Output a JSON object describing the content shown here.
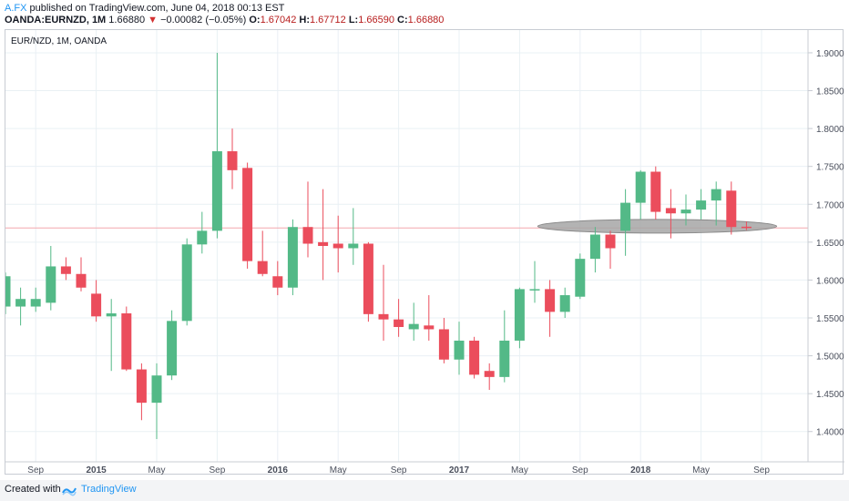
{
  "header": {
    "author": "A.FX",
    "published_text": "published on TradingView.com, June 04, 2018 00:13 EST",
    "symbol_line": "OANDA:EURNZD, 1M",
    "last": "1.66880",
    "change_arrow": "▼",
    "change": "−0.00082 (−0.05%)",
    "o_label": "O:",
    "o_value": "1.67042",
    "h_label": "H:",
    "h_value": "1.67712",
    "l_label": "L:",
    "l_value": "1.66590",
    "c_label": "C:",
    "c_value": "1.66880"
  },
  "footer": {
    "created_with": "Created with",
    "brand": "TradingView"
  },
  "colors": {
    "up": "#53b987",
    "down": "#eb4d5c",
    "grid": "#e9f0f4",
    "price_line": "#f3a7ae",
    "highlight": "#a6a6a6",
    "axis_text": "#4a4f5c"
  },
  "chart_data": {
    "type": "candlestick",
    "title": "EUR/NZD, 1M, OANDA",
    "ylim": [
      1.36,
      1.93
    ],
    "y_ticks": [
      "1.40000",
      "1.45000",
      "1.50000",
      "1.55000",
      "1.60000",
      "1.65000",
      "1.70000",
      "1.75000",
      "1.80000",
      "1.85000",
      "1.90000"
    ],
    "x_ticks": [
      {
        "label": "Sep",
        "bold": false,
        "i": 2
      },
      {
        "label": "2015",
        "bold": true,
        "i": 6
      },
      {
        "label": "May",
        "bold": false,
        "i": 10
      },
      {
        "label": "Sep",
        "bold": false,
        "i": 14
      },
      {
        "label": "2016",
        "bold": true,
        "i": 18
      },
      {
        "label": "May",
        "bold": false,
        "i": 22
      },
      {
        "label": "Sep",
        "bold": false,
        "i": 26
      },
      {
        "label": "2017",
        "bold": true,
        "i": 30
      },
      {
        "label": "May",
        "bold": false,
        "i": 34
      },
      {
        "label": "Sep",
        "bold": false,
        "i": 38
      },
      {
        "label": "2018",
        "bold": true,
        "i": 42
      },
      {
        "label": "May",
        "bold": false,
        "i": 46
      },
      {
        "label": "Sep",
        "bold": false,
        "i": 50
      }
    ],
    "current_price": 1.6688,
    "highlight_zone": {
      "from_index": 35.2,
      "to_index": 51.0,
      "center": 1.671,
      "half_height": 0.009
    },
    "candles": [
      {
        "month": "2014-06",
        "o": 1.565,
        "h": 1.61,
        "l": 1.555,
        "c": 1.605
      },
      {
        "month": "2014-07",
        "o": 1.565,
        "h": 1.59,
        "l": 1.54,
        "c": 1.575
      },
      {
        "month": "2014-08",
        "o": 1.565,
        "h": 1.59,
        "l": 1.558,
        "c": 1.575
      },
      {
        "month": "2014-09",
        "o": 1.57,
        "h": 1.645,
        "l": 1.56,
        "c": 1.618
      },
      {
        "month": "2014-10",
        "o": 1.618,
        "h": 1.63,
        "l": 1.6,
        "c": 1.608
      },
      {
        "month": "2014-11",
        "o": 1.608,
        "h": 1.63,
        "l": 1.585,
        "c": 1.59
      },
      {
        "month": "2014-12",
        "o": 1.582,
        "h": 1.6,
        "l": 1.545,
        "c": 1.552
      },
      {
        "month": "2015-01",
        "o": 1.552,
        "h": 1.575,
        "l": 1.48,
        "c": 1.556
      },
      {
        "month": "2015-02",
        "o": 1.556,
        "h": 1.565,
        "l": 1.48,
        "c": 1.482
      },
      {
        "month": "2015-03",
        "o": 1.482,
        "h": 1.49,
        "l": 1.415,
        "c": 1.438
      },
      {
        "month": "2015-04",
        "o": 1.438,
        "h": 1.49,
        "l": 1.39,
        "c": 1.474
      },
      {
        "month": "2015-05",
        "o": 1.474,
        "h": 1.56,
        "l": 1.468,
        "c": 1.546
      },
      {
        "month": "2015-06",
        "o": 1.546,
        "h": 1.655,
        "l": 1.54,
        "c": 1.647
      },
      {
        "month": "2015-07",
        "o": 1.647,
        "h": 1.69,
        "l": 1.635,
        "c": 1.665
      },
      {
        "month": "2015-08",
        "o": 1.665,
        "h": 1.9,
        "l": 1.655,
        "c": 1.77
      },
      {
        "month": "2015-09",
        "o": 1.77,
        "h": 1.8,
        "l": 1.72,
        "c": 1.745
      },
      {
        "month": "2015-10",
        "o": 1.748,
        "h": 1.755,
        "l": 1.615,
        "c": 1.625
      },
      {
        "month": "2015-11",
        "o": 1.625,
        "h": 1.665,
        "l": 1.605,
        "c": 1.608
      },
      {
        "month": "2015-12",
        "o": 1.605,
        "h": 1.625,
        "l": 1.58,
        "c": 1.59
      },
      {
        "month": "2016-01",
        "o": 1.59,
        "h": 1.68,
        "l": 1.58,
        "c": 1.67
      },
      {
        "month": "2016-02",
        "o": 1.67,
        "h": 1.73,
        "l": 1.63,
        "c": 1.648
      },
      {
        "month": "2016-03",
        "o": 1.65,
        "h": 1.72,
        "l": 1.6,
        "c": 1.645
      },
      {
        "month": "2016-04",
        "o": 1.648,
        "h": 1.685,
        "l": 1.61,
        "c": 1.642
      },
      {
        "month": "2016-05",
        "o": 1.642,
        "h": 1.695,
        "l": 1.62,
        "c": 1.648
      },
      {
        "month": "2016-06",
        "o": 1.648,
        "h": 1.65,
        "l": 1.545,
        "c": 1.555
      },
      {
        "month": "2016-07",
        "o": 1.555,
        "h": 1.62,
        "l": 1.52,
        "c": 1.548
      },
      {
        "month": "2016-08",
        "o": 1.548,
        "h": 1.575,
        "l": 1.525,
        "c": 1.538
      },
      {
        "month": "2016-09",
        "o": 1.535,
        "h": 1.57,
        "l": 1.52,
        "c": 1.542
      },
      {
        "month": "2016-10",
        "o": 1.54,
        "h": 1.58,
        "l": 1.52,
        "c": 1.535
      },
      {
        "month": "2016-11",
        "o": 1.535,
        "h": 1.55,
        "l": 1.49,
        "c": 1.495
      },
      {
        "month": "2016-12",
        "o": 1.495,
        "h": 1.545,
        "l": 1.475,
        "c": 1.52
      },
      {
        "month": "2017-01",
        "o": 1.52,
        "h": 1.525,
        "l": 1.47,
        "c": 1.475
      },
      {
        "month": "2017-02",
        "o": 1.48,
        "h": 1.49,
        "l": 1.455,
        "c": 1.472
      },
      {
        "month": "2017-03",
        "o": 1.472,
        "h": 1.56,
        "l": 1.465,
        "c": 1.52
      },
      {
        "month": "2017-04",
        "o": 1.52,
        "h": 1.59,
        "l": 1.51,
        "c": 1.588
      },
      {
        "month": "2017-05",
        "o": 1.588,
        "h": 1.625,
        "l": 1.57,
        "c": 1.588
      },
      {
        "month": "2017-06",
        "o": 1.588,
        "h": 1.6,
        "l": 1.525,
        "c": 1.558
      },
      {
        "month": "2017-07",
        "o": 1.558,
        "h": 1.59,
        "l": 1.55,
        "c": 1.58
      },
      {
        "month": "2017-08",
        "o": 1.578,
        "h": 1.635,
        "l": 1.575,
        "c": 1.628
      },
      {
        "month": "2017-09",
        "o": 1.628,
        "h": 1.67,
        "l": 1.61,
        "c": 1.66
      },
      {
        "month": "2017-10",
        "o": 1.66,
        "h": 1.665,
        "l": 1.615,
        "c": 1.642
      },
      {
        "month": "2017-11",
        "o": 1.665,
        "h": 1.72,
        "l": 1.632,
        "c": 1.702
      },
      {
        "month": "2017-12",
        "o": 1.702,
        "h": 1.745,
        "l": 1.68,
        "c": 1.743
      },
      {
        "month": "2018-01",
        "o": 1.743,
        "h": 1.75,
        "l": 1.68,
        "c": 1.69
      },
      {
        "month": "2018-02",
        "o": 1.695,
        "h": 1.72,
        "l": 1.655,
        "c": 1.688
      },
      {
        "month": "2018-03",
        "o": 1.688,
        "h": 1.713,
        "l": 1.672,
        "c": 1.693
      },
      {
        "month": "2018-04",
        "o": 1.693,
        "h": 1.72,
        "l": 1.68,
        "c": 1.705
      },
      {
        "month": "2018-05",
        "o": 1.705,
        "h": 1.73,
        "l": 1.672,
        "c": 1.72
      },
      {
        "month": "2018-06",
        "o": 1.718,
        "h": 1.73,
        "l": 1.66,
        "c": 1.67
      },
      {
        "month": "2018-07",
        "o": 1.67042,
        "h": 1.67712,
        "l": 1.6659,
        "c": 1.6688
      }
    ]
  }
}
